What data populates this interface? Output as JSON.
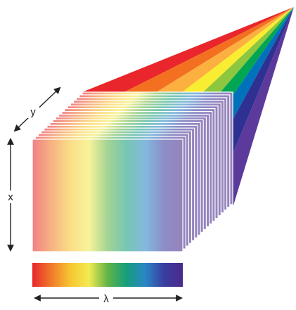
{
  "labels": {
    "x_axis": "x",
    "y_axis": "y",
    "wavelength_axis": "λ"
  },
  "spectrum_colors": [
    "#e8262b",
    "#f07a2a",
    "#f7c531",
    "#f3ea52",
    "#63b548",
    "#159e7a",
    "#2a86c7",
    "#3a3da0",
    "#4b2a8c"
  ],
  "fan_colors": [
    "#e8262b",
    "#f37021",
    "#fbb040",
    "#f9ed32",
    "#8dc63f",
    "#00a651",
    "#0072bc",
    "#2e3192",
    "#5b3a9b"
  ],
  "layer_count": 18
}
